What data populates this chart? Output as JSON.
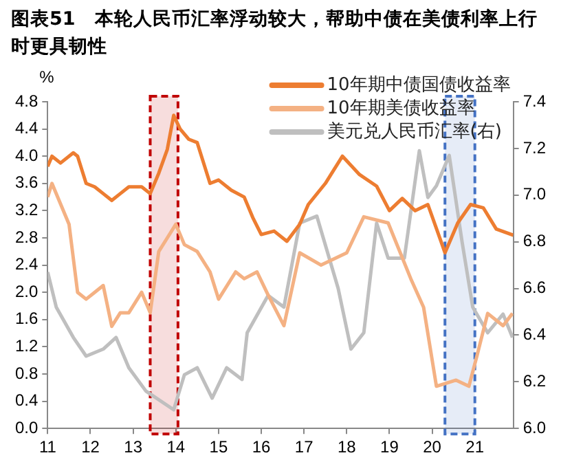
{
  "chart_data": {
    "type": "line",
    "title": "图表51　本轮人民币汇率浮动较大，帮助中债在美债利率上行时更具韧性",
    "ylabel": "%",
    "xlim": [
      2011,
      2021.9
    ],
    "xticks": [
      {
        "value": 2011,
        "label": "11"
      },
      {
        "value": 2012,
        "label": "12"
      },
      {
        "value": 2013,
        "label": "13"
      },
      {
        "value": 2014,
        "label": "14"
      },
      {
        "value": 2015,
        "label": "15"
      },
      {
        "value": 2016,
        "label": "16"
      },
      {
        "value": 2017,
        "label": "17"
      },
      {
        "value": 2018,
        "label": "18"
      },
      {
        "value": 2019,
        "label": "19"
      },
      {
        "value": 2020,
        "label": "20"
      },
      {
        "value": 2021,
        "label": "21"
      }
    ],
    "ylim": [
      0,
      4.8
    ],
    "yticks": [
      {
        "value": 0,
        "label": "0.0"
      },
      0.4,
      0.8,
      1.2,
      1.6,
      {
        "value": 2,
        "label": "2.0"
      },
      2.4,
      2.8,
      3.2,
      3.6,
      {
        "value": 4,
        "label": "4.0"
      },
      4.4,
      4.8
    ],
    "y2lim": [
      6.0,
      7.4
    ],
    "y2ticks": [
      {
        "value": 6,
        "label": "6.0"
      },
      6.2,
      6.4,
      6.6,
      6.8,
      {
        "value": 7,
        "label": "7.0"
      },
      7.2,
      7.4
    ],
    "grid": false,
    "legend": "top right",
    "marker": "none",
    "line_style": "solid",
    "bands": [
      {
        "axis": "x",
        "from": 2013.4,
        "to": 2014.05,
        "color": "#c00000"
      },
      {
        "axis": "x",
        "from": 2020.3,
        "to": 2021.0,
        "color": "#4472c4"
      }
    ],
    "series": [
      {
        "name": "10年期中债国债收益率",
        "color": "#ed7d31",
        "x": [
          2011,
          2011.1,
          2011.3,
          2011.6,
          2011.7,
          2011.9,
          2012.1,
          2012.3,
          2012.5,
          2012.7,
          2012.9,
          2013.2,
          2013.4,
          2013.6,
          2013.8,
          2013.95,
          2014.1,
          2014.3,
          2014.5,
          2014.8,
          2015,
          2015.3,
          2015.6,
          2015.8,
          2016,
          2016.3,
          2016.6,
          2016.9,
          2017.1,
          2017.5,
          2017.9,
          2018.3,
          2018.7,
          2019,
          2019.3,
          2019.6,
          2019.9,
          2020.2,
          2020.3,
          2020.6,
          2020.9,
          2021.2,
          2021.5,
          2021.9
        ],
        "values": [
          3.85,
          4.0,
          3.9,
          4.05,
          4.0,
          3.6,
          3.55,
          3.45,
          3.35,
          3.45,
          3.55,
          3.55,
          3.45,
          3.75,
          4.1,
          4.6,
          4.4,
          4.25,
          4.2,
          3.6,
          3.65,
          3.5,
          3.4,
          3.1,
          2.85,
          2.9,
          2.75,
          3.0,
          3.29,
          3.6,
          4.0,
          3.73,
          3.56,
          3.2,
          3.38,
          3.2,
          3.29,
          2.76,
          2.58,
          3.02,
          3.29,
          3.24,
          2.93,
          2.84
        ]
      },
      {
        "name": "10年期美债收益率",
        "color": "#f4b183",
        "x": [
          2011,
          2011.1,
          2011.3,
          2011.5,
          2011.7,
          2011.9,
          2012.1,
          2012.3,
          2012.5,
          2012.7,
          2012.9,
          2013.2,
          2013.4,
          2013.6,
          2013.8,
          2014,
          2014.2,
          2014.5,
          2014.8,
          2015,
          2015.4,
          2015.6,
          2015.9,
          2016.16,
          2016.53,
          2016.9,
          2017.4,
          2018,
          2018.4,
          2018.97,
          2019.5,
          2019.8,
          2020.1,
          2020.56,
          2020.86,
          2021.05,
          2021.3,
          2021.66,
          2021.88
        ],
        "values": [
          3.4,
          3.6,
          3.3,
          3.0,
          2.0,
          1.9,
          2.0,
          2.1,
          1.5,
          1.7,
          1.7,
          2.0,
          1.7,
          2.6,
          2.8,
          3.0,
          2.7,
          2.6,
          2.3,
          1.9,
          2.3,
          2.2,
          2.3,
          1.96,
          1.51,
          2.58,
          2.4,
          2.58,
          3.11,
          3.02,
          2.2,
          1.78,
          0.62,
          0.71,
          0.62,
          1.07,
          1.69,
          1.51,
          1.69
        ]
      },
      {
        "name": "美元兑人民币汇率(右)",
        "color": "#bfbfbf",
        "axis": "y2",
        "x": [
          2011,
          2011.2,
          2011.6,
          2011.9,
          2012.3,
          2012.6,
          2012.9,
          2013.3,
          2013.95,
          2014.2,
          2014.5,
          2014.85,
          2015.19,
          2015.55,
          2015.67,
          2016.16,
          2016.53,
          2016.9,
          2017.3,
          2017.8,
          2018.1,
          2018.4,
          2018.7,
          2018.97,
          2019.35,
          2019.7,
          2019.9,
          2020.1,
          2020.4,
          2020.7,
          2020.95,
          2021.3,
          2021.66,
          2021.88
        ],
        "values": [
          6.67,
          6.52,
          6.39,
          6.31,
          6.34,
          6.39,
          6.26,
          6.16,
          6.08,
          6.23,
          6.26,
          6.13,
          6.26,
          6.21,
          6.41,
          6.57,
          6.52,
          6.88,
          6.91,
          6.6,
          6.34,
          6.41,
          6.88,
          6.73,
          6.73,
          7.19,
          6.99,
          7.04,
          7.17,
          6.8,
          6.52,
          6.41,
          6.49,
          6.39
        ]
      }
    ]
  }
}
